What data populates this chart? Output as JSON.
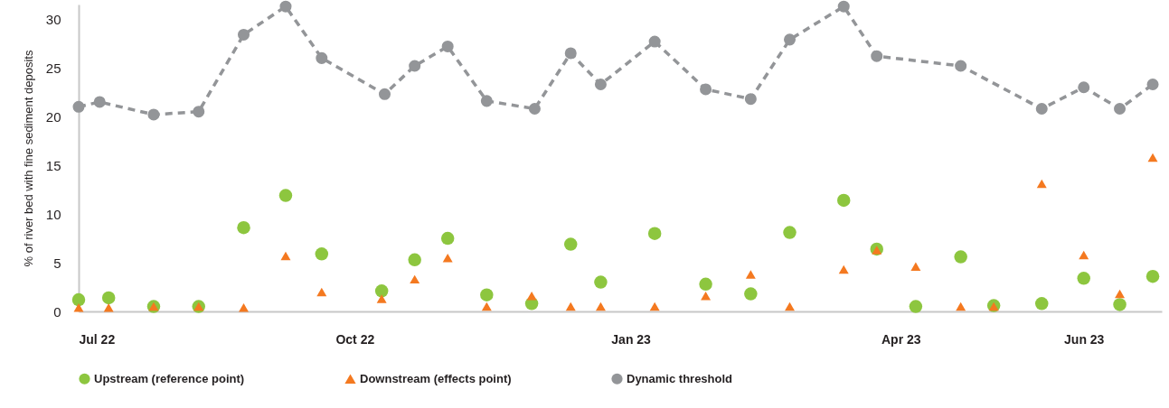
{
  "chart_data": {
    "type": "scatter",
    "ylabel": "% of river bed with fine sediment deposits",
    "x": [
      "2022-07-01",
      "2022-07-11",
      "2022-07-26",
      "2022-08-10",
      "2022-08-25",
      "2022-09-08",
      "2022-09-20",
      "2022-10-10",
      "2022-10-21",
      "2022-11-01",
      "2022-11-14",
      "2022-11-29",
      "2022-12-12",
      "2022-12-22",
      "2023-01-09",
      "2023-01-26",
      "2023-02-10",
      "2023-02-23",
      "2023-03-13",
      "2023-03-24",
      "2023-04-06",
      "2023-04-21",
      "2023-05-02",
      "2023-05-18",
      "2023-06-01",
      "2023-06-13",
      "2023-06-24"
    ],
    "series": [
      {
        "name": "Upstream (reference point)",
        "type": "scatter",
        "marker": "circle",
        "color": "#8dc63f",
        "values": [
          1.2,
          1.4,
          0.5,
          0.5,
          8.6,
          11.9,
          5.9,
          2.1,
          5.3,
          7.5,
          1.7,
          0.8,
          6.9,
          3.0,
          8.0,
          2.8,
          1.8,
          8.1,
          11.4,
          6.4,
          0.5,
          5.6,
          0.6,
          0.8,
          3.4,
          0.7,
          3.6
        ]
      },
      {
        "name": "Downstream (effects point)",
        "type": "scatter",
        "marker": "triangle",
        "color": "#f47920",
        "values": [
          0.4,
          0.4,
          0.5,
          0.5,
          0.4,
          5.7,
          2.0,
          1.3,
          3.3,
          5.5,
          0.5,
          1.6,
          0.5,
          0.5,
          0.5,
          1.6,
          3.8,
          0.5,
          4.3,
          6.3,
          4.6,
          0.5,
          0.5,
          13.1,
          5.8,
          1.8,
          15.8
        ]
      },
      {
        "name": "Dynamic threshold",
        "type": "line",
        "marker": "circle",
        "line_style": "dashed",
        "color": "#939598",
        "x": [
          "2022-07-01",
          "2022-07-08",
          "2022-07-26",
          "2022-08-10",
          "2022-08-25",
          "2022-09-08",
          "2022-09-20",
          "2022-10-11",
          "2022-10-21",
          "2022-11-01",
          "2022-11-14",
          "2022-11-30",
          "2022-12-12",
          "2022-12-22",
          "2023-01-09",
          "2023-01-26",
          "2023-02-10",
          "2023-02-23",
          "2023-03-13",
          "2023-03-24",
          "2023-04-21",
          "2023-05-18",
          "2023-06-01",
          "2023-06-13",
          "2023-06-24"
        ],
        "values": [
          21.0,
          21.5,
          20.2,
          20.5,
          28.4,
          31.3,
          26.0,
          22.3,
          25.2,
          27.2,
          21.6,
          20.8,
          26.5,
          23.3,
          27.7,
          22.8,
          21.8,
          27.9,
          31.3,
          26.2,
          25.2,
          20.8,
          23.0,
          20.8,
          23.3
        ]
      }
    ],
    "xlim": [
      "2022-07-01",
      "2023-06-27"
    ],
    "xticks": [
      {
        "value": "2022-07-01",
        "label": "Jul 22"
      },
      {
        "value": "2022-10-01",
        "label": "Oct 22"
      },
      {
        "value": "2023-01-01",
        "label": "Jan 23"
      },
      {
        "value": "2023-04-01",
        "label": "Apr 23"
      },
      {
        "value": "2023-06-01",
        "label": "Jun 23"
      }
    ],
    "ylim": [
      0,
      31.5
    ],
    "yticks": [
      0,
      5,
      10,
      15,
      20,
      25,
      30
    ],
    "grid": false,
    "legend": "bottom"
  }
}
